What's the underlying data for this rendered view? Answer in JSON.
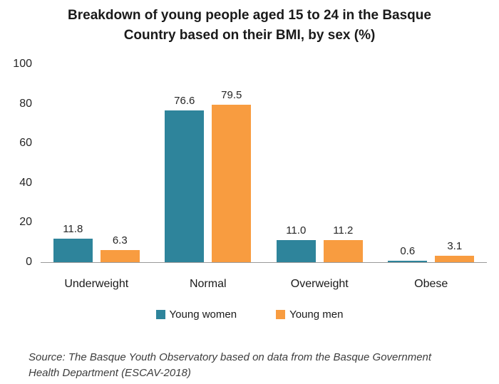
{
  "title": {
    "line1": "Breakdown of young people aged 15 to 24 in the Basque",
    "line2": "Country based on their BMI, by sex (%)"
  },
  "chart_data": {
    "type": "bar",
    "categories": [
      "Underweight",
      "Normal",
      "Overweight",
      "Obese"
    ],
    "series": [
      {
        "name": "Young women",
        "color": "#2E849B",
        "values": [
          11.8,
          76.6,
          11.0,
          0.6
        ]
      },
      {
        "name": "Young men",
        "color": "#F89C40",
        "values": [
          6.3,
          79.5,
          11.2,
          3.1
        ]
      }
    ],
    "yticks": [
      0,
      20,
      40,
      60,
      80,
      100
    ],
    "ylim": [
      0,
      100
    ],
    "grid": false,
    "value_labels": true,
    "value_label_decimals": 1,
    "legend_position": "bottom",
    "axis_line_color": "#9a9a9a"
  },
  "source": "Source: The Basque Youth Observatory based on data from the Basque Government Health Department (ESCAV-2018)"
}
